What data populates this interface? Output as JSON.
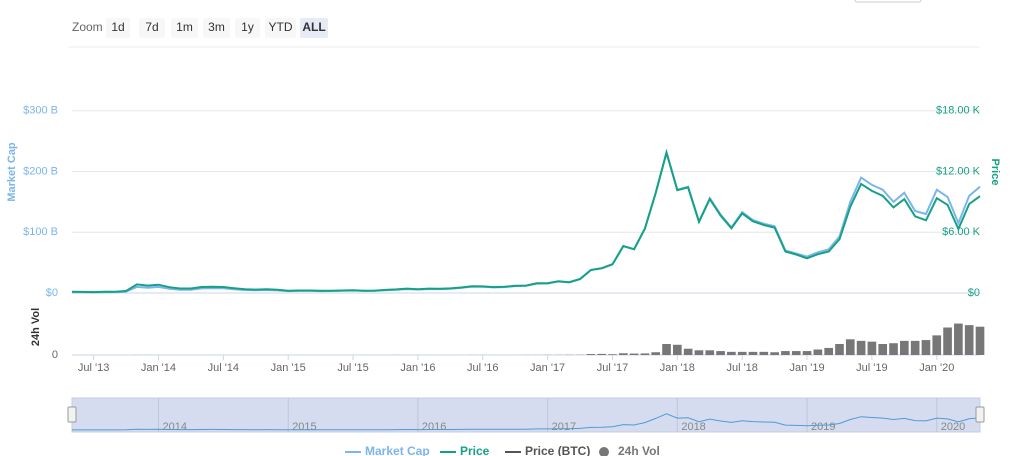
{
  "zoom": {
    "label": "Zoom",
    "buttons": [
      "1d",
      "7d",
      "1m",
      "3m",
      "1y",
      "YTD",
      "ALL"
    ],
    "selected": 6
  },
  "chart_data": {
    "type": "line",
    "categories": [
      "2013-05",
      "2013-06",
      "2013-07",
      "2013-08",
      "2013-09",
      "2013-10",
      "2013-11",
      "2013-12",
      "2014-01",
      "2014-02",
      "2014-03",
      "2014-04",
      "2014-05",
      "2014-06",
      "2014-07",
      "2014-08",
      "2014-09",
      "2014-10",
      "2014-11",
      "2014-12",
      "2015-01",
      "2015-02",
      "2015-03",
      "2015-04",
      "2015-05",
      "2015-06",
      "2015-07",
      "2015-08",
      "2015-09",
      "2015-10",
      "2015-11",
      "2015-12",
      "2016-01",
      "2016-02",
      "2016-03",
      "2016-04",
      "2016-05",
      "2016-06",
      "2016-07",
      "2016-08",
      "2016-09",
      "2016-10",
      "2016-11",
      "2016-12",
      "2017-01",
      "2017-02",
      "2017-03",
      "2017-04",
      "2017-05",
      "2017-06",
      "2017-07",
      "2017-08",
      "2017-09",
      "2017-10",
      "2017-11",
      "2017-12",
      "2018-01",
      "2018-02",
      "2018-03",
      "2018-04",
      "2018-05",
      "2018-06",
      "2018-07",
      "2018-08",
      "2018-09",
      "2018-10",
      "2018-11",
      "2018-12",
      "2019-01",
      "2019-02",
      "2019-03",
      "2019-04",
      "2019-05",
      "2019-06",
      "2019-07",
      "2019-08",
      "2019-09",
      "2019-10",
      "2019-11",
      "2019-12",
      "2020-01",
      "2020-02",
      "2020-03",
      "2020-04",
      "2020-05"
    ],
    "series": [
      {
        "name": "Market Cap",
        "color": "#7cb5ec",
        "axis": "y",
        "values": [
          1.3,
          1.2,
          1.0,
          1.3,
          1.5,
          2.3,
          10,
          8.8,
          10,
          7,
          5.5,
          5.5,
          7.5,
          8,
          7.7,
          6.2,
          5,
          4.5,
          5,
          4.3,
          3.2,
          3.5,
          3.5,
          3.2,
          3.3,
          3.6,
          4.1,
          3.4,
          3.5,
          4.6,
          5.4,
          6.5,
          5.7,
          6.5,
          6.5,
          7,
          8.4,
          10.5,
          10.3,
          9.3,
          9.7,
          11.4,
          11.8,
          15.5,
          15.7,
          19,
          17.5,
          22.7,
          37.5,
          40.5,
          47,
          77,
          72,
          106,
          165,
          232,
          170,
          175,
          118,
          156,
          129,
          108,
          133,
          120,
          114,
          110,
          70,
          65,
          60,
          67,
          72,
          93,
          150,
          190,
          178,
          170,
          150,
          165,
          135,
          130,
          170,
          158,
          115,
          160,
          175
        ]
      },
      {
        "name": "Price",
        "color": "#16a085",
        "axis": "y2",
        "values": [
          0.117,
          0.107,
          0.088,
          0.114,
          0.13,
          0.198,
          0.85,
          0.73,
          0.82,
          0.57,
          0.44,
          0.44,
          0.59,
          0.62,
          0.59,
          0.47,
          0.38,
          0.34,
          0.37,
          0.32,
          0.23,
          0.25,
          0.25,
          0.23,
          0.23,
          0.25,
          0.28,
          0.23,
          0.24,
          0.31,
          0.36,
          0.43,
          0.38,
          0.43,
          0.42,
          0.45,
          0.54,
          0.67,
          0.65,
          0.58,
          0.61,
          0.71,
          0.73,
          0.96,
          0.97,
          1.17,
          1.07,
          1.38,
          2.28,
          2.45,
          2.84,
          4.63,
          4.33,
          6.36,
          9.88,
          13.86,
          10.15,
          10.43,
          7.02,
          9.27,
          7.65,
          6.4,
          7.86,
          7.08,
          6.72,
          6.46,
          4.1,
          3.8,
          3.43,
          3.83,
          4.1,
          5.3,
          8.52,
          10.78,
          10.08,
          9.6,
          8.45,
          9.27,
          7.58,
          7.18,
          9.36,
          8.7,
          6.32,
          8.79,
          9.56
        ]
      },
      {
        "name": "Price (BTC)",
        "color": "#555555"
      },
      {
        "name": "24h Vol",
        "color": "#777777",
        "axis": "y3",
        "values": [
          0.01,
          0.01,
          0.01,
          0.01,
          0.01,
          0.02,
          0.1,
          0.08,
          0.06,
          0.04,
          0.03,
          0.02,
          0.02,
          0.02,
          0.02,
          0.02,
          0.03,
          0.02,
          0.02,
          0.02,
          0.03,
          0.02,
          0.02,
          0.02,
          0.02,
          0.02,
          0.03,
          0.04,
          0.02,
          0.05,
          0.1,
          0.06,
          0.06,
          0.05,
          0.05,
          0.04,
          0.06,
          0.12,
          0.08,
          0.06,
          0.06,
          0.07,
          0.1,
          0.12,
          0.2,
          0.2,
          0.3,
          0.3,
          1.2,
          1.4,
          1.0,
          2.2,
          1.8,
          2.0,
          3.5,
          14,
          13,
          8,
          6,
          6,
          5,
          4,
          4,
          4,
          4,
          3.5,
          5,
          5,
          5,
          7,
          9,
          14,
          20,
          18,
          17,
          14,
          15,
          18,
          18,
          19,
          25,
          35,
          40,
          38,
          36
        ]
      }
    ],
    "ylabel": "Market Cap",
    "y2label": "Price",
    "y3label": "24h Vol",
    "ylim": [
      0,
      400
    ],
    "yticks": [
      {
        "value": 0,
        "label": "$0"
      },
      {
        "value": 100,
        "label": "$100 B"
      },
      {
        "value": 200,
        "label": "$200 B"
      },
      {
        "value": 300,
        "label": "$300 B"
      }
    ],
    "y2lim": [
      0,
      24
    ],
    "y2ticks": [
      {
        "value": 0,
        "label": "$0"
      },
      {
        "value": 6,
        "label": "$6.00 K"
      },
      {
        "value": 12,
        "label": "$12.00 K"
      },
      {
        "value": 18,
        "label": "$18.00 K"
      }
    ],
    "y3lim": [
      0,
      70
    ],
    "y3ticks": [
      0
    ],
    "xticks": [
      {
        "value": "2013-07",
        "label": "Jul '13"
      },
      {
        "value": "2014-01",
        "label": "Jan '14"
      },
      {
        "value": "2014-07",
        "label": "Jul '14"
      },
      {
        "value": "2015-01",
        "label": "Jan '15"
      },
      {
        "value": "2015-07",
        "label": "Jul '15"
      },
      {
        "value": "2016-01",
        "label": "Jan '16"
      },
      {
        "value": "2016-07",
        "label": "Jul '16"
      },
      {
        "value": "2017-01",
        "label": "Jan '17"
      },
      {
        "value": "2017-07",
        "label": "Jul '17"
      },
      {
        "value": "2018-01",
        "label": "Jan '18"
      },
      {
        "value": "2018-07",
        "label": "Jul '18"
      },
      {
        "value": "2019-01",
        "label": "Jan '19"
      },
      {
        "value": "2019-07",
        "label": "Jul '19"
      },
      {
        "value": "2020-01",
        "label": "Jan '20"
      }
    ],
    "navigator_xticks": [
      {
        "value": "2014-01",
        "label": "2014"
      },
      {
        "value": "2015-01",
        "label": "2015"
      },
      {
        "value": "2016-01",
        "label": "2016"
      },
      {
        "value": "2017-01",
        "label": "2017"
      },
      {
        "value": "2018-01",
        "label": "2018"
      },
      {
        "value": "2019-01",
        "label": "2019"
      },
      {
        "value": "2020-01",
        "label": "2020"
      }
    ],
    "grid": true
  }
}
